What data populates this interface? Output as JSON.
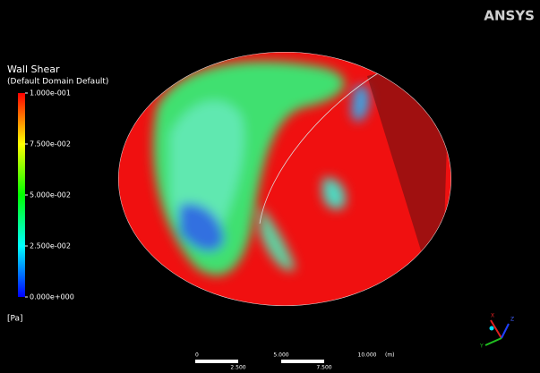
{
  "brand": "ANSYS",
  "legend": {
    "title": "Wall Shear",
    "subtitle": "(Default Domain Default)",
    "labels": [
      "1.000e-001",
      "7.500e-002",
      "5.000e-002",
      "2.500e-002",
      "0.000e+000"
    ],
    "unit": "[Pa]"
  },
  "scale_bar": {
    "top_labels": [
      "0",
      "5.000",
      "10.000"
    ],
    "bottom_labels": [
      "2.500",
      "7.500"
    ],
    "unit": "(m)"
  },
  "triad": {
    "x": "X",
    "y": "Y",
    "z": "Z"
  }
}
